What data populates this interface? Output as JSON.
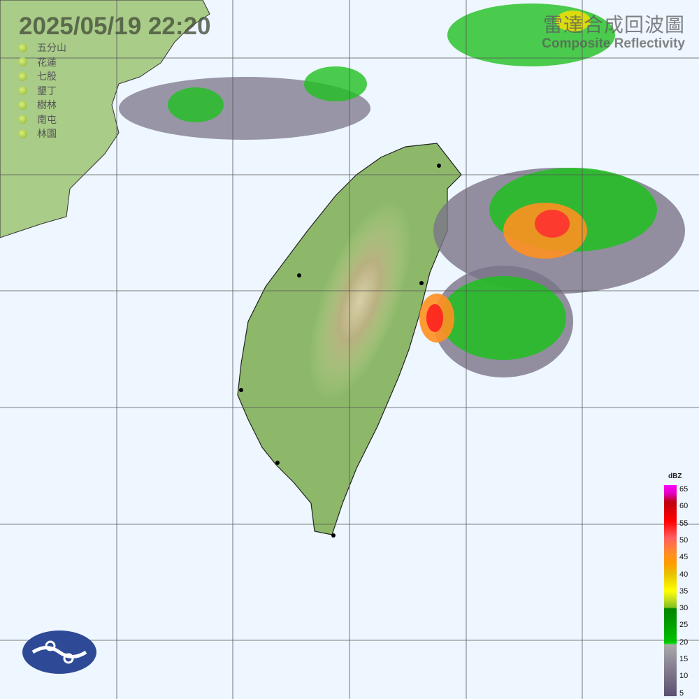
{
  "timestamp": "2025/05/19  22:20",
  "title": {
    "zh": "雷達合成回波圖",
    "en": "Composite Reflectivity"
  },
  "radar_stations": [
    {
      "name": "五分山"
    },
    {
      "name": "花蓮"
    },
    {
      "name": "七股"
    },
    {
      "name": "墾丁"
    },
    {
      "name": "樹林"
    },
    {
      "name": "南屯"
    },
    {
      "name": "林園"
    }
  ],
  "legend": {
    "unit": "dBZ",
    "ticks": [
      "65",
      "60",
      "55",
      "50",
      "45",
      "40",
      "35",
      "30",
      "25",
      "20",
      "15",
      "10",
      "5"
    ]
  },
  "colors": {
    "ocean": "#eef6ff",
    "land": "#8db86a",
    "echo_low": "#7a7488",
    "echo_green": "#00c000",
    "echo_yellow": "#ffe000",
    "echo_orange": "#ff9020",
    "echo_red": "#ff2020",
    "logo": "#2e4a96"
  }
}
